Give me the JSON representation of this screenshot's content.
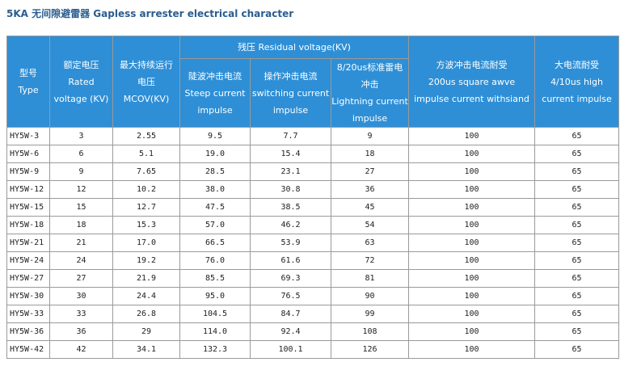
{
  "title": "5KA 无间隙避雷器 Gapless arrester electrical character",
  "header": {
    "type": [
      "型号",
      "Type"
    ],
    "rated": [
      "额定电压",
      "Rated",
      "voltage (KV)"
    ],
    "mcov": [
      "最大持续运行",
      "电压",
      "MCOV(KV)"
    ],
    "residual": "残压 Residual voltage(KV)",
    "steep": [
      "陡波冲击电流",
      "Steep current",
      "impulse"
    ],
    "switching": [
      "操作冲击电流",
      "switching current",
      "impulse"
    ],
    "lightning": [
      "8/20us标准雷电",
      "冲击",
      "Lightning current",
      "impulse"
    ],
    "square": [
      "方波冲击电流耐受",
      "200us square awve",
      "impulse current withsiand"
    ],
    "high": [
      "大电流耐受",
      "4/10us high",
      "current impulse"
    ]
  },
  "rows": [
    [
      "HY5W-3",
      "3",
      "2.55",
      "9.5",
      "7.7",
      "9",
      "100",
      "65"
    ],
    [
      "HY5W-6",
      "6",
      "5.1",
      "19.0",
      "15.4",
      "18",
      "100",
      "65"
    ],
    [
      "HY5W-9",
      "9",
      "7.65",
      "28.5",
      "23.1",
      "27",
      "100",
      "65"
    ],
    [
      "HY5W-12",
      "12",
      "10.2",
      "38.0",
      "30.8",
      "36",
      "100",
      "65"
    ],
    [
      "HY5W-15",
      "15",
      "12.7",
      "47.5",
      "38.5",
      "45",
      "100",
      "65"
    ],
    [
      "HY5W-18",
      "18",
      "15.3",
      "57.0",
      "46.2",
      "54",
      "100",
      "65"
    ],
    [
      "HY5W-21",
      "21",
      "17.0",
      "66.5",
      "53.9",
      "63",
      "100",
      "65"
    ],
    [
      "HY5W-24",
      "24",
      "19.2",
      "76.0",
      "61.6",
      "72",
      "100",
      "65"
    ],
    [
      "HY5W-27",
      "27",
      "21.9",
      "85.5",
      "69.3",
      "81",
      "100",
      "65"
    ],
    [
      "HY5W-30",
      "30",
      "24.4",
      "95.0",
      "76.5",
      "90",
      "100",
      "65"
    ],
    [
      "HY5W-33",
      "33",
      "26.8",
      "104.5",
      "84.7",
      "99",
      "100",
      "65"
    ],
    [
      "HY5W-36",
      "36",
      "29",
      "114.0",
      "92.4",
      "108",
      "100",
      "65"
    ],
    [
      "HY5W-42",
      "42",
      "34.1",
      "132.3",
      "100.1",
      "126",
      "100",
      "65"
    ]
  ]
}
